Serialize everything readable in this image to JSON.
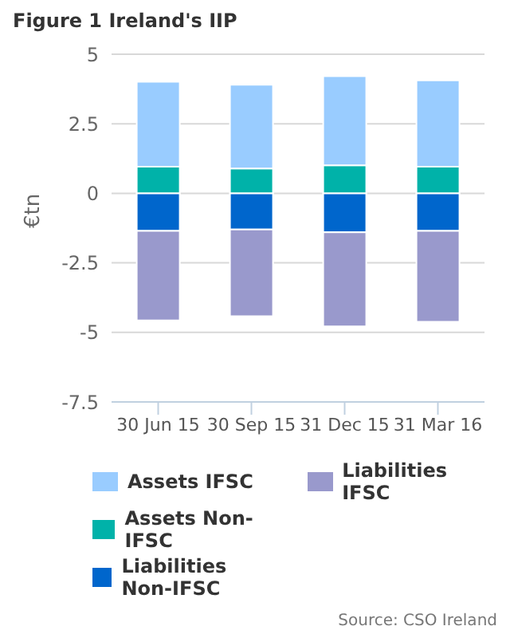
{
  "chart_data": {
    "type": "bar",
    "title": "Figure 1 Ireland's IIP",
    "ylabel": "€tn",
    "categories": [
      "30 Jun 15",
      "30 Sep 15",
      "31 Dec 15",
      "31 Mar 16"
    ],
    "stacked": true,
    "series": [
      {
        "name": "Assets Non-IFSC",
        "color": "#00b2a9",
        "values": [
          0.96,
          0.89,
          1.01,
          0.96
        ]
      },
      {
        "name": "Liabilities Non-IFSC",
        "color": "#0066cc",
        "values": [
          -1.35,
          -1.3,
          -1.4,
          -1.35
        ]
      },
      {
        "name": "Assets IFSC",
        "color": "#99ccff",
        "values": [
          3.05,
          3.01,
          3.2,
          3.1
        ]
      },
      {
        "name": "Liabilities IFSC",
        "color": "#9999cc",
        "values": [
          -3.22,
          -3.12,
          -3.38,
          -3.27
        ]
      }
    ],
    "ylim": [
      -7.5,
      5
    ],
    "yticks": [
      -7.5,
      -5,
      -2.5,
      0,
      2.5,
      5
    ],
    "grid": "y",
    "legend": "bottom",
    "annotations": [
      "Source: CSO Ireland"
    ]
  }
}
